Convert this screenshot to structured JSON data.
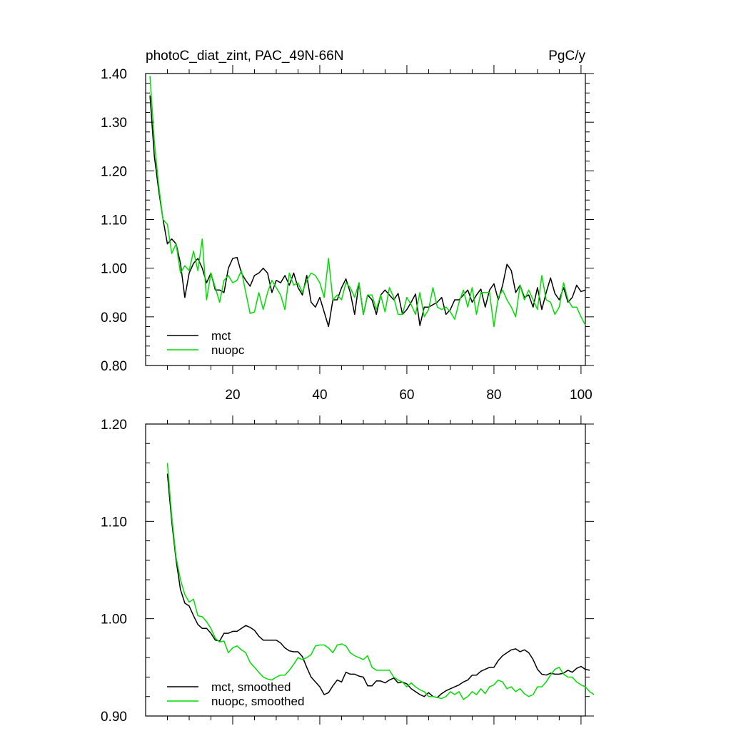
{
  "title_left": "photoC_diat_zint, PAC_49N-66N",
  "title_right": "PgC/y",
  "colors": {
    "mct": "#000000",
    "nuopc": "#00dd00"
  },
  "chart_data": [
    {
      "type": "line",
      "xlim": [
        0,
        101
      ],
      "ylim": [
        0.8,
        1.4
      ],
      "x_ticks": [
        20,
        40,
        60,
        80,
        100
      ],
      "x_tick_labels": [
        "20",
        "40",
        "60",
        "80",
        "100"
      ],
      "y_ticks": [
        0.8,
        0.9,
        1.0,
        1.1,
        1.2,
        1.3,
        1.4
      ],
      "y_tick_labels": [
        "0.80",
        "0.90",
        "1.00",
        "1.10",
        "1.20",
        "1.30",
        "1.40"
      ],
      "legend_position": "bottom-left",
      "series": [
        {
          "name": "mct",
          "x_start": 1,
          "x_step": 1,
          "values": [
            1.355,
            1.23,
            1.16,
            1.1,
            1.05,
            1.06,
            1.05,
            1.01,
            0.94,
            0.99,
            1.01,
            1.02,
            1.0,
            0.97,
            0.99,
            0.955,
            0.955,
            0.95,
            1.0,
            1.02,
            1.022,
            0.99,
            0.975,
            0.963,
            0.985,
            0.99,
            1.0,
            0.99,
            0.95,
            0.975,
            0.97,
            0.985,
            0.965,
            0.99,
            0.96,
            0.945,
            0.985,
            0.93,
            0.92,
            0.94,
            0.91,
            0.88,
            0.935,
            0.935,
            0.96,
            0.978,
            0.95,
            0.905,
            0.97,
            0.905,
            0.945,
            0.935,
            0.905,
            0.945,
            0.955,
            0.945,
            0.935,
            0.948,
            0.905,
            0.915,
            0.93,
            0.947,
            0.882,
            0.92,
            0.92,
            0.925,
            0.93,
            0.94,
            0.905,
            0.915,
            0.935,
            0.935,
            0.945,
            0.955,
            0.93,
            0.945,
            0.957,
            0.92,
            0.955,
            0.968,
            0.935,
            0.965,
            1.008,
            0.995,
            0.95,
            0.965,
            0.94,
            0.945,
            0.92,
            0.96,
            0.915,
            0.95,
            0.98,
            0.948,
            0.935,
            0.96,
            0.93,
            0.94,
            0.965,
            0.952,
            0.955
          ]
        },
        {
          "name": "nuopc",
          "x_start": 1,
          "x_step": 1,
          "values": [
            1.395,
            1.26,
            1.17,
            1.1,
            1.09,
            1.03,
            1.05,
            0.99,
            1.005,
            0.995,
            1.035,
            0.995,
            1.06,
            0.935,
            0.99,
            0.96,
            0.93,
            0.975,
            0.985,
            0.97,
            0.975,
            0.995,
            0.95,
            0.907,
            0.91,
            0.95,
            0.915,
            0.95,
            0.975,
            0.96,
            0.945,
            0.915,
            0.99,
            0.965,
            0.97,
            0.95,
            0.975,
            0.99,
            0.985,
            0.97,
            0.94,
            1.02,
            0.935,
            0.945,
            0.935,
            0.97,
            0.96,
            0.94,
            0.97,
            0.905,
            0.945,
            0.945,
            0.915,
            0.945,
            0.91,
            0.96,
            0.94,
            0.905,
            0.905,
            0.94,
            0.925,
            0.905,
            0.95,
            0.9,
            0.915,
            0.96,
            0.92,
            0.915,
            0.92,
            0.91,
            0.895,
            0.93,
            0.955,
            0.92,
            0.96,
            0.905,
            0.95,
            0.95,
            0.95,
            0.88,
            0.94,
            0.955,
            0.935,
            0.92,
            0.9,
            0.965,
            0.935,
            0.955,
            0.935,
            0.915,
            0.985,
            0.935,
            0.93,
            0.905,
            0.92,
            0.97,
            0.935,
            0.92,
            0.92,
            0.9,
            0.883
          ]
        }
      ]
    },
    {
      "type": "line",
      "xlim": [
        0,
        101
      ],
      "ylim": [
        0.9,
        1.2
      ],
      "y_ticks": [
        0.9,
        1.0,
        1.1,
        1.2
      ],
      "y_tick_labels": [
        "0.90",
        "1.00",
        "1.10",
        "1.20"
      ],
      "legend_position": "bottom-left",
      "series": [
        {
          "name": "mct, smoothed",
          "x_start": 5,
          "x_step": 1,
          "values": [
            1.149,
            1.1,
            1.06,
            1.03,
            1.016,
            1.013,
            1.003,
            0.994,
            0.99,
            0.99,
            0.985,
            0.978,
            0.977,
            0.985,
            0.985,
            0.987,
            0.987,
            0.99,
            0.993,
            0.991,
            0.988,
            0.982,
            0.978,
            0.978,
            0.978,
            0.978,
            0.975,
            0.97,
            0.967,
            0.966,
            0.966,
            0.961,
            0.95,
            0.94,
            0.935,
            0.93,
            0.922,
            0.924,
            0.931,
            0.937,
            0.935,
            0.945,
            0.943,
            0.943,
            0.941,
            0.94,
            0.931,
            0.931,
            0.936,
            0.936,
            0.934,
            0.937,
            0.939,
            0.934,
            0.935,
            0.933,
            0.928,
            0.925,
            0.922,
            0.92,
            0.924,
            0.92,
            0.919,
            0.923,
            0.926,
            0.928,
            0.93,
            0.932,
            0.935,
            0.937,
            0.942,
            0.942,
            0.946,
            0.948,
            0.95,
            0.95,
            0.957,
            0.962,
            0.965,
            0.968,
            0.969,
            0.966,
            0.968,
            0.965,
            0.958,
            0.948,
            0.943,
            0.942,
            0.944,
            0.943,
            0.943,
            0.944,
            0.947,
            0.945,
            0.949,
            0.951,
            0.948,
            0.947
          ]
        },
        {
          "name": "nuopc, smoothed",
          "x_start": 5,
          "x_step": 1,
          "values": [
            1.16,
            1.105,
            1.063,
            1.04,
            1.025,
            1.017,
            1.02,
            1.003,
            1.002,
            0.997,
            0.99,
            0.98,
            0.976,
            0.977,
            0.965,
            0.97,
            0.972,
            0.968,
            0.965,
            0.955,
            0.95,
            0.945,
            0.94,
            0.938,
            0.937,
            0.94,
            0.942,
            0.942,
            0.947,
            0.953,
            0.96,
            0.958,
            0.96,
            0.963,
            0.972,
            0.973,
            0.973,
            0.97,
            0.965,
            0.973,
            0.974,
            0.972,
            0.965,
            0.962,
            0.96,
            0.958,
            0.962,
            0.95,
            0.947,
            0.947,
            0.947,
            0.947,
            0.94,
            0.937,
            0.935,
            0.93,
            0.934,
            0.93,
            0.927,
            0.925,
            0.92,
            0.92,
            0.919,
            0.918,
            0.92,
            0.925,
            0.922,
            0.925,
            0.917,
            0.92,
            0.925,
            0.922,
            0.928,
            0.923,
            0.93,
            0.932,
            0.937,
            0.935,
            0.928,
            0.93,
            0.925,
            0.928,
            0.923,
            0.92,
            0.922,
            0.93,
            0.93,
            0.935,
            0.942,
            0.948,
            0.95,
            0.943,
            0.94,
            0.94,
            0.935,
            0.932,
            0.93,
            0.925,
            0.922
          ]
        }
      ]
    }
  ]
}
